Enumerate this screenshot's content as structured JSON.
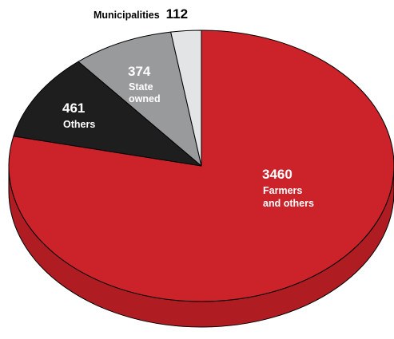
{
  "chart_data": {
    "type": "pie",
    "title": "",
    "slices": [
      {
        "key": "farmers",
        "value": 3460,
        "label_lines": [
          "Farmers",
          "and others"
        ],
        "color": "#cc2229",
        "text_color": "#ffffff"
      },
      {
        "key": "others",
        "value": 461,
        "label_lines": [
          "Others"
        ],
        "color": "#1e1e1e",
        "text_color": "#ffffff"
      },
      {
        "key": "state",
        "value": 374,
        "label_lines": [
          "State",
          "owned"
        ],
        "color": "#999a9c",
        "text_color": "#ffffff"
      },
      {
        "key": "municipalities",
        "value": 112,
        "label_lines": [
          "Municipalities"
        ],
        "color": "#e3e4e6",
        "text_color": "#000000"
      }
    ]
  }
}
